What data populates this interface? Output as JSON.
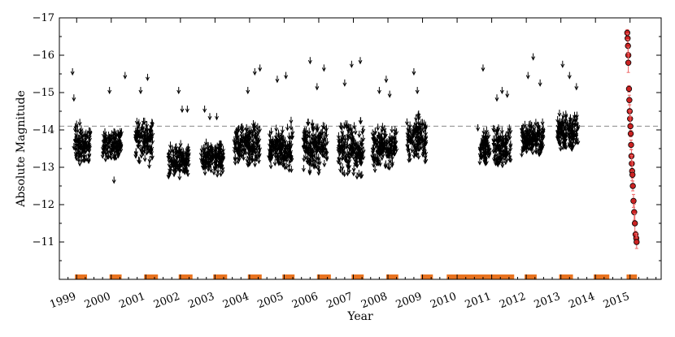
{
  "chart_data": {
    "type": "scatter",
    "title": "",
    "xlabel": "Year",
    "ylabel": "Absolute Magnitude",
    "xlim": [
      1998.5,
      2015.9
    ],
    "ylim": [
      -17,
      -10
    ],
    "y_inverted": true,
    "x_ticks": [
      "1999",
      "2000",
      "2001",
      "2002",
      "2003",
      "2004",
      "2005",
      "2006",
      "2007",
      "2008",
      "2009",
      "2010",
      "2011",
      "2012",
      "2013",
      "2014",
      "2015"
    ],
    "y_ticks": [
      "−17",
      "−16",
      "−15",
      "−14",
      "−13",
      "−12",
      "−11"
    ],
    "y_tick_values": [
      -17,
      -16,
      -15,
      -14,
      -13,
      -12,
      -11
    ],
    "reference_line": {
      "y": -14.1,
      "style": "dashed",
      "color": "#888888"
    },
    "grid": false,
    "colors": {
      "upper_limits": "#000000",
      "detections": "#cc2222",
      "error_bars": "#ee6666",
      "coverage": "#e87320"
    },
    "upper_limit_seasons": [
      {
        "x_range": [
          1998.95,
          1999.4
        ],
        "y_range": [
          -13.2,
          -14.0
        ],
        "peaks": [
          [
            1998.88,
            -15.5
          ],
          [
            1998.92,
            -14.8
          ],
          [
            1998.92,
            -13.5
          ]
        ]
      },
      {
        "x_range": [
          1999.75,
          2000.3
        ],
        "y_range": [
          -13.3,
          -13.8
        ],
        "peaks": [
          [
            1999.95,
            -15.0
          ],
          [
            2000.08,
            -12.6
          ],
          [
            2000.4,
            -15.4
          ]
        ]
      },
      {
        "x_range": [
          2000.7,
          2001.2
        ],
        "y_range": [
          -13.2,
          -14.1
        ],
        "peaks": [
          [
            2000.85,
            -15.0
          ],
          [
            2001.05,
            -15.35
          ],
          [
            2001.1,
            -13.0
          ]
        ]
      },
      {
        "x_range": [
          2001.65,
          2002.25
        ],
        "y_range": [
          -12.8,
          -13.5
        ],
        "peaks": [
          [
            2001.95,
            -15.0
          ],
          [
            2002.05,
            -14.5
          ],
          [
            2002.2,
            -14.5
          ]
        ]
      },
      {
        "x_range": [
          2002.6,
          2003.25
        ],
        "y_range": [
          -12.9,
          -13.5
        ],
        "peaks": [
          [
            2002.7,
            -14.5
          ],
          [
            2002.85,
            -14.3
          ],
          [
            2003.05,
            -14.3
          ]
        ]
      },
      {
        "x_range": [
          2003.55,
          2004.3
        ],
        "y_range": [
          -13.1,
          -14.0
        ],
        "peaks": [
          [
            2003.95,
            -15.0
          ],
          [
            2004.15,
            -15.5
          ],
          [
            2004.3,
            -15.6
          ]
        ]
      },
      {
        "x_range": [
          2004.55,
          2005.25
        ],
        "y_range": [
          -13.0,
          -13.9
        ],
        "peaks": [
          [
            2004.8,
            -15.3
          ],
          [
            2005.05,
            -15.4
          ],
          [
            2005.2,
            -14.2
          ]
        ]
      },
      {
        "x_range": [
          2005.55,
          2006.25
        ],
        "y_range": [
          -12.9,
          -14.1
        ],
        "peaks": [
          [
            2005.75,
            -15.8
          ],
          [
            2005.95,
            -15.1
          ],
          [
            2006.15,
            -15.6
          ]
        ]
      },
      {
        "x_range": [
          2006.55,
          2007.3
        ],
        "y_range": [
          -12.8,
          -14.1
        ],
        "peaks": [
          [
            2006.75,
            -15.2
          ],
          [
            2006.95,
            -15.7
          ],
          [
            2007.2,
            -15.8
          ]
        ]
      },
      {
        "x_range": [
          2007.55,
          2008.25
        ],
        "y_range": [
          -13.0,
          -14.0
        ],
        "peaks": [
          [
            2007.75,
            -15.0
          ],
          [
            2007.95,
            -15.3
          ],
          [
            2008.05,
            -14.9
          ]
        ]
      },
      {
        "x_range": [
          2008.55,
          2009.1
        ],
        "y_range": [
          -13.2,
          -14.3
        ],
        "peaks": [
          [
            2008.75,
            -15.5
          ],
          [
            2008.85,
            -15.0
          ],
          [
            2008.9,
            -14.3
          ]
        ]
      },
      {
        "x_range": [
          2010.65,
          2010.95
        ],
        "y_range": [
          -13.1,
          -13.8
        ],
        "peaks": [
          [
            2010.6,
            -14.0
          ],
          [
            2010.75,
            -15.6
          ]
        ]
      },
      {
        "x_range": [
          2011.05,
          2011.55
        ],
        "y_range": [
          -13.1,
          -13.9
        ],
        "peaks": [
          [
            2011.15,
            -14.8
          ],
          [
            2011.3,
            -15.0
          ],
          [
            2011.45,
            -14.9
          ]
        ]
      },
      {
        "x_range": [
          2011.85,
          2012.5
        ],
        "y_range": [
          -13.4,
          -14.1
        ],
        "peaks": [
          [
            2012.05,
            -15.4
          ],
          [
            2012.2,
            -15.9
          ],
          [
            2012.4,
            -15.2
          ]
        ]
      },
      {
        "x_range": [
          2012.9,
          2013.5
        ],
        "y_range": [
          -13.5,
          -14.3
        ],
        "peaks": [
          [
            2013.05,
            -15.7
          ],
          [
            2013.25,
            -15.4
          ],
          [
            2013.45,
            -15.1
          ]
        ]
      }
    ],
    "detections": [
      [
        2014.92,
        -16.6
      ],
      [
        2014.93,
        -16.45
      ],
      [
        2014.94,
        -16.25
      ],
      [
        2014.95,
        -16.0
      ],
      [
        2014.95,
        -15.8
      ],
      [
        2014.97,
        -15.1
      ],
      [
        2014.98,
        -14.8
      ],
      [
        2014.99,
        -14.5
      ],
      [
        2015.0,
        -14.3
      ],
      [
        2015.01,
        -14.1
      ],
      [
        2015.02,
        -13.9
      ],
      [
        2015.03,
        -13.6
      ],
      [
        2015.04,
        -13.3
      ],
      [
        2015.05,
        -13.1
      ],
      [
        2015.06,
        -12.9
      ],
      [
        2015.07,
        -12.8
      ],
      [
        2015.08,
        -12.5
      ],
      [
        2015.1,
        -12.1
      ],
      [
        2015.12,
        -11.8
      ],
      [
        2015.14,
        -11.5
      ],
      [
        2015.16,
        -11.2
      ],
      [
        2015.18,
        -11.1
      ],
      [
        2015.19,
        -11.0
      ]
    ],
    "coverage_bars": [
      [
        1998.95,
        1999.3
      ],
      [
        1999.95,
        2000.3
      ],
      [
        2000.95,
        2001.35
      ],
      [
        2001.95,
        2002.35
      ],
      [
        2002.95,
        2003.35
      ],
      [
        2003.95,
        2004.35
      ],
      [
        2004.95,
        2005.3
      ],
      [
        2005.95,
        2006.35
      ],
      [
        2006.95,
        2007.3
      ],
      [
        2007.95,
        2008.3
      ],
      [
        2008.95,
        2009.3
      ],
      [
        2009.7,
        2011.65
      ],
      [
        2011.95,
        2012.3
      ],
      [
        2012.95,
        2013.35
      ],
      [
        2013.95,
        2014.4
      ],
      [
        2014.9,
        2015.2
      ]
    ]
  }
}
